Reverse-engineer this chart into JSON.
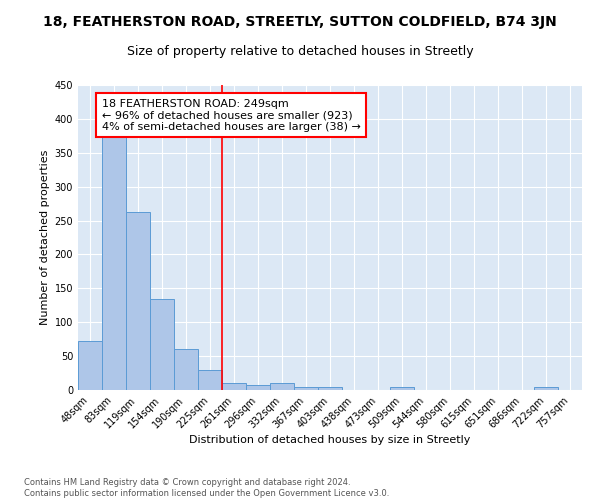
{
  "title": "18, FEATHERSTON ROAD, STREETLY, SUTTON COLDFIELD, B74 3JN",
  "subtitle": "Size of property relative to detached houses in Streetly",
  "xlabel": "Distribution of detached houses by size in Streetly",
  "ylabel": "Number of detached properties",
  "categories": [
    "48sqm",
    "83sqm",
    "119sqm",
    "154sqm",
    "190sqm",
    "225sqm",
    "261sqm",
    "296sqm",
    "332sqm",
    "367sqm",
    "403sqm",
    "438sqm",
    "473sqm",
    "509sqm",
    "544sqm",
    "580sqm",
    "615sqm",
    "651sqm",
    "686sqm",
    "722sqm",
    "757sqm"
  ],
  "values": [
    72,
    375,
    262,
    135,
    60,
    30,
    10,
    8,
    10,
    5,
    5,
    0,
    0,
    4,
    0,
    0,
    0,
    0,
    0,
    5,
    0
  ],
  "bar_color": "#aec6e8",
  "bar_edge_color": "#5b9bd5",
  "vline_x": 5.5,
  "vline_color": "red",
  "annotation_text": "18 FEATHERSTON ROAD: 249sqm\n← 96% of detached houses are smaller (923)\n4% of semi-detached houses are larger (38) →",
  "annotation_box_color": "white",
  "annotation_box_edge_color": "red",
  "ylim": [
    0,
    450
  ],
  "yticks": [
    0,
    50,
    100,
    150,
    200,
    250,
    300,
    350,
    400,
    450
  ],
  "footer": "Contains HM Land Registry data © Crown copyright and database right 2024.\nContains public sector information licensed under the Open Government Licence v3.0.",
  "background_color": "#dce8f5",
  "title_fontsize": 10,
  "subtitle_fontsize": 9,
  "annotation_fontsize": 8,
  "axis_label_fontsize": 8,
  "tick_fontsize": 7
}
